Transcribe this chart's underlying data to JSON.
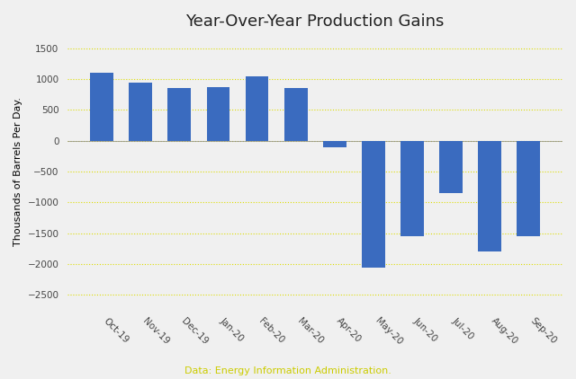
{
  "categories": [
    "Oct-19",
    "Nov-19",
    "Dec-19",
    "Jan-20",
    "Feb-20",
    "Mar-20",
    "Apr-20",
    "May-20",
    "Jun-20",
    "Jul-20",
    "Aug-20",
    "Sep-20"
  ],
  "values": [
    1100,
    950,
    850,
    875,
    1050,
    850,
    -100,
    -2050,
    -1550,
    -850,
    -1800,
    -1550
  ],
  "bar_color": "#3a6bbf",
  "title": "Year-Over-Year Production Gains",
  "ylabel": "Thousands of Barrels Per Day.",
  "source_text": "Data: Energy Information Administration.",
  "source_color": "#cccc00",
  "title_fontsize": 13,
  "ylabel_fontsize": 8,
  "tick_label_fontsize": 7.5,
  "source_fontsize": 8,
  "ylim": [
    -2700,
    1700
  ],
  "yticks": [
    1500,
    1000,
    500,
    0,
    -500,
    -1000,
    -1500,
    -2000,
    -2500
  ],
  "grid_color": "#dddd00",
  "bg_color": "#f0f0f0",
  "bar_width": 0.6,
  "figsize": [
    6.4,
    4.22
  ],
  "dpi": 100
}
